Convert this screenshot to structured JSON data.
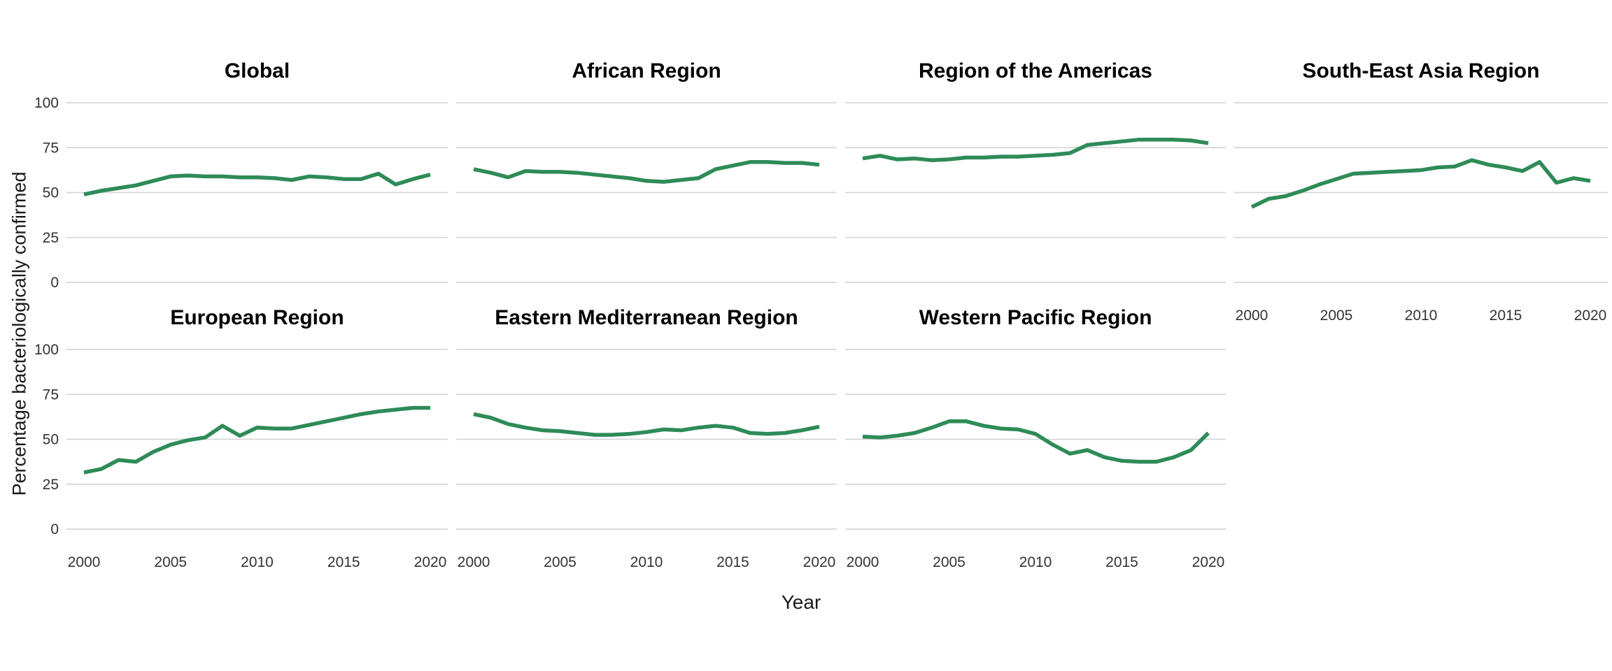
{
  "labels": {
    "y_axis": "Percentage bacteriologically confirmed",
    "x_axis": "Year"
  },
  "axes": {
    "y_tick_labels": [
      "100",
      "75",
      "50",
      "25",
      "0"
    ],
    "y_tick_values": [
      100,
      75,
      50,
      25,
      0
    ],
    "x_tick_labels": [
      "2000",
      "2005",
      "2010",
      "2015",
      "2020"
    ],
    "x_tick_values": [
      2000,
      2005,
      2010,
      2015,
      2020
    ]
  },
  "style": {
    "line_color": "#2e8b57",
    "grid_color": "#d6d6d6",
    "tick_label_color": "#333333",
    "background": "#ffffff"
  },
  "chart_data": {
    "type": "line",
    "title": "",
    "xlabel": "Year",
    "ylabel": "Percentage bacteriologically confirmed",
    "ylim": [
      0,
      100
    ],
    "xlim": [
      2000,
      2020
    ],
    "grid": "horizontal-major-only",
    "legend": "none",
    "x": [
      2000,
      2001,
      2002,
      2003,
      2004,
      2005,
      2006,
      2007,
      2008,
      2009,
      2010,
      2011,
      2012,
      2013,
      2014,
      2015,
      2016,
      2017,
      2018,
      2019,
      2020
    ],
    "facets": [
      {
        "title": "Global",
        "values": [
          49,
          51,
          52.5,
          54,
          56.5,
          59,
          59.5,
          59,
          59,
          58.5,
          58.5,
          58,
          57,
          59,
          58.5,
          57.5,
          57.5,
          60.5,
          54.5,
          57.5,
          60
        ]
      },
      {
        "title": "African Region",
        "values": [
          63,
          61,
          58.5,
          62,
          61.5,
          61.5,
          61,
          60,
          59,
          58,
          56.5,
          56,
          57,
          58,
          63,
          65,
          67,
          67,
          66.5,
          66.5,
          65.5
        ]
      },
      {
        "title": "Region of the Americas",
        "values": [
          69,
          70.5,
          68.5,
          69,
          68,
          68.5,
          69.5,
          69.5,
          70,
          70,
          70.5,
          71,
          72,
          76.5,
          77.5,
          78.5,
          79.5,
          79.5,
          79.5,
          79,
          77.5
        ]
      },
      {
        "title": "South-East Asia Region",
        "values": [
          42,
          46.5,
          48,
          51,
          54.5,
          57.5,
          60.5,
          61,
          61.5,
          62,
          62.5,
          64,
          64.5,
          68,
          65.5,
          64,
          62,
          67,
          55.5,
          58,
          56.5
        ]
      },
      {
        "title": "European Region",
        "values": [
          31.5,
          33.5,
          38.5,
          37.5,
          43,
          47,
          49.5,
          51,
          57.5,
          52,
          56.5,
          56,
          56,
          58,
          60,
          62,
          64,
          65.5,
          66.5,
          67.5,
          67.5
        ]
      },
      {
        "title": "Eastern Mediterranean Region",
        "values": [
          64,
          62,
          58.5,
          56.5,
          55,
          54.5,
          53.5,
          52.5,
          52.5,
          53,
          54,
          55.5,
          55,
          56.5,
          57.5,
          56.5,
          53.5,
          53,
          53.5,
          55,
          57
        ]
      },
      {
        "title": "Western Pacific Region",
        "values": [
          51.5,
          51,
          52,
          53.5,
          56.5,
          60,
          60,
          57.5,
          56,
          55.5,
          53,
          47,
          42,
          44,
          40,
          38,
          37.5,
          37.5,
          40,
          44,
          53.5
        ]
      }
    ]
  }
}
